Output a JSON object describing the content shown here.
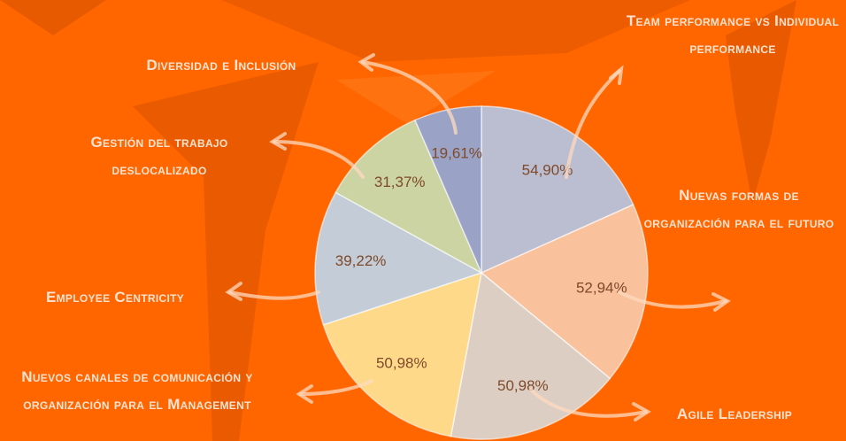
{
  "chart_data": {
    "type": "pie",
    "categories": [
      "Team performance vs Individual performance",
      "Nuevas formas de organización para el futuro",
      "Agile Leadership",
      "Nuevos canales de comunicación y organización para el Management",
      "Employee Centricity",
      "Gestión del trabajo deslocalizado",
      "Diversidad e Inclusión"
    ],
    "values": [
      54.9,
      52.94,
      50.98,
      50.98,
      39.22,
      31.37,
      19.61
    ],
    "value_labels": [
      "54,90%",
      "52,94%",
      "50,98%",
      "50,98%",
      "39,22%",
      "31,37%",
      "19,61%"
    ],
    "colors": [
      "#b4c7e7",
      "#f8cbad",
      "#d9d9d9",
      "#ffe699",
      "#bdd7ee",
      "#c5e0b4",
      "#8faadc"
    ]
  }
}
